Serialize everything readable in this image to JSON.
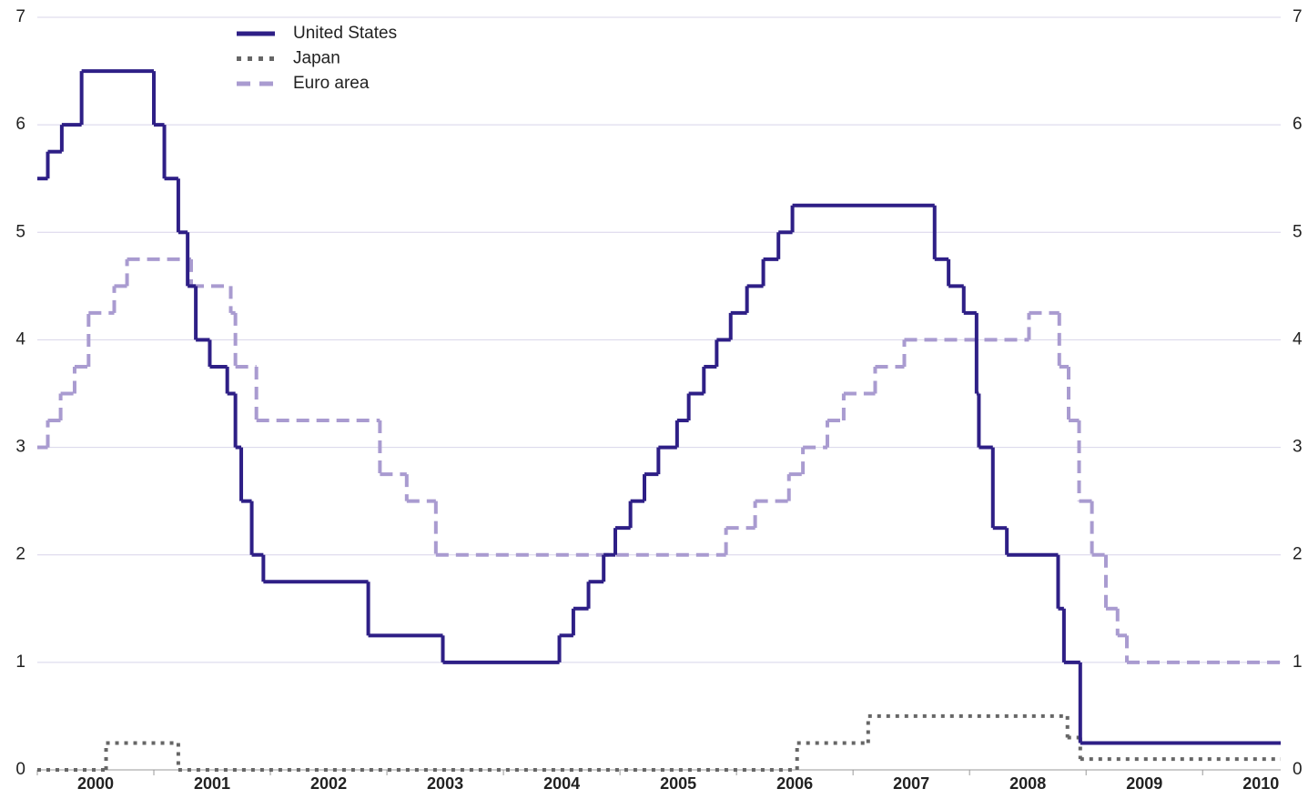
{
  "chart_data": {
    "type": "step",
    "xlim": [
      2000,
      2010.67
    ],
    "xticks": [
      2000,
      2001,
      2002,
      2003,
      2004,
      2005,
      2006,
      2007,
      2008,
      2009,
      2010
    ],
    "ylim": [
      0,
      7
    ],
    "yticks": [
      0,
      1,
      2,
      3,
      4,
      5,
      6,
      7
    ],
    "y2lim": [
      0,
      7
    ],
    "y2ticks": [
      0,
      1,
      2,
      3,
      4,
      5,
      6,
      7
    ],
    "grid": true,
    "legend": "top-left",
    "series": [
      {
        "name": "United States",
        "color": "#2e1f86",
        "style": "solid",
        "x": [
          2000,
          2000.09,
          2000.21,
          2000.38,
          2001.0,
          2001.09,
          2001.21,
          2001.29,
          2001.36,
          2001.48,
          2001.63,
          2001.7,
          2001.75,
          2001.84,
          2001.94,
          2002.84,
          2003.48,
          2004.48,
          2004.6,
          2004.73,
          2004.86,
          2004.96,
          2005.09,
          2005.21,
          2005.33,
          2005.49,
          2005.59,
          2005.72,
          2005.83,
          2005.95,
          2006.09,
          2006.23,
          2006.36,
          2006.48,
          2007.7,
          2007.82,
          2007.95,
          2008.06,
          2008.08,
          2008.2,
          2008.32,
          2008.76,
          2008.81,
          2008.95
        ],
        "values": [
          5.5,
          5.75,
          6,
          6.5,
          6,
          5.5,
          5,
          4.5,
          4,
          3.75,
          3.5,
          3,
          2.5,
          2,
          1.75,
          1.25,
          1,
          1.25,
          1.5,
          1.75,
          2,
          2.25,
          2.5,
          2.75,
          3,
          3.25,
          3.5,
          3.75,
          4,
          4.25,
          4.5,
          4.75,
          5,
          5.25,
          4.75,
          4.5,
          4.25,
          3.5,
          3,
          2.25,
          2,
          1.5,
          1,
          0.25
        ]
      },
      {
        "name": "Japan",
        "color": "#666666",
        "style": "dotted",
        "x": [
          2000,
          2000.59,
          2001.21,
          2006.52,
          2007.13,
          2008.84,
          2008.95
        ],
        "values": [
          0,
          0.25,
          0,
          0.25,
          0.5,
          0.3,
          0.1
        ]
      },
      {
        "name": "Euro area",
        "color": "#a99bd0",
        "style": "dashed",
        "x": [
          2000,
          2000.09,
          2000.2,
          2000.32,
          2000.44,
          2000.66,
          2000.77,
          2001.32,
          2001.66,
          2001.7,
          2001.88,
          2002.94,
          2003.17,
          2003.42,
          2005.91,
          2006.16,
          2006.45,
          2006.57,
          2006.78,
          2006.92,
          2007.19,
          2007.44,
          2008.51,
          2008.77,
          2008.85,
          2008.94,
          2009.05,
          2009.17,
          2009.27,
          2009.35
        ],
        "values": [
          3,
          3.25,
          3.5,
          3.75,
          4.25,
          4.5,
          4.75,
          4.5,
          4.25,
          3.75,
          3.25,
          2.75,
          2.5,
          2,
          2.25,
          2.5,
          2.75,
          3,
          3.25,
          3.5,
          3.75,
          4,
          4.25,
          3.75,
          3.25,
          2.5,
          2,
          1.5,
          1.25,
          1
        ]
      }
    ]
  }
}
